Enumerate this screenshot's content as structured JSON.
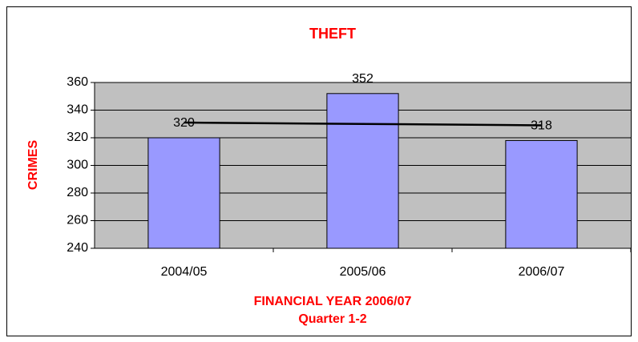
{
  "chart_data": {
    "type": "bar",
    "title": "THEFT",
    "x_label_lines": [
      "FINANCIAL YEAR 2006/07",
      "Quarter 1-2"
    ],
    "y_label": "CRIMES",
    "categories": [
      "2004/05",
      "2005/06",
      "2006/07"
    ],
    "values": [
      320,
      352,
      318
    ],
    "color": "#9999ff",
    "plot_background": "#c0c0c0",
    "title_color": "#ff0000",
    "trendline": {
      "color": "#000000",
      "values": [
        331,
        330,
        329
      ]
    },
    "ylim": [
      240,
      360
    ],
    "yticks": [
      240,
      260,
      280,
      300,
      320,
      340,
      360
    ],
    "grid": true
  }
}
